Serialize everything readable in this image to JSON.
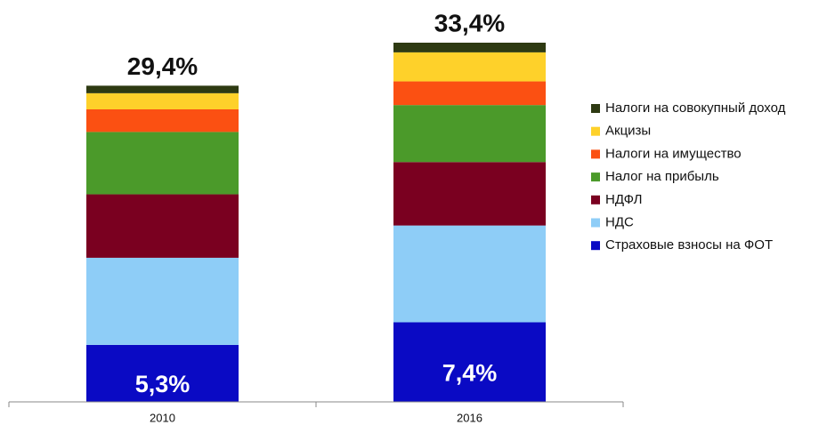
{
  "chart_data": {
    "type": "stacked_bar",
    "categories": [
      "2010",
      "2016"
    ],
    "totals": [
      29.4,
      33.4
    ],
    "total_labels": [
      "29,4%",
      "33,4%"
    ],
    "series": [
      {
        "name": "Страховые взносы на ФОТ",
        "color": "#0a0ac4",
        "values": [
          5.3,
          7.4
        ],
        "value_labels": [
          "5,3%",
          "7,4%"
        ]
      },
      {
        "name": "НДС",
        "color": "#8ecdf7",
        "values": [
          8.1,
          9.0
        ]
      },
      {
        "name": "НДФЛ",
        "color": "#7a0020",
        "values": [
          5.9,
          5.9
        ]
      },
      {
        "name": "Налог на прибыль",
        "color": "#4b9a2a",
        "values": [
          5.8,
          5.3
        ]
      },
      {
        "name": "Налоги на имущество",
        "color": "#fb5012",
        "values": [
          2.1,
          2.2
        ]
      },
      {
        "name": "Акцизы",
        "color": "#fed12a",
        "values": [
          1.5,
          2.7
        ]
      },
      {
        "name": "Налоги на совокупный доход",
        "color": "#2e3a12",
        "values": [
          0.7,
          0.9
        ]
      }
    ],
    "legend": "right"
  }
}
